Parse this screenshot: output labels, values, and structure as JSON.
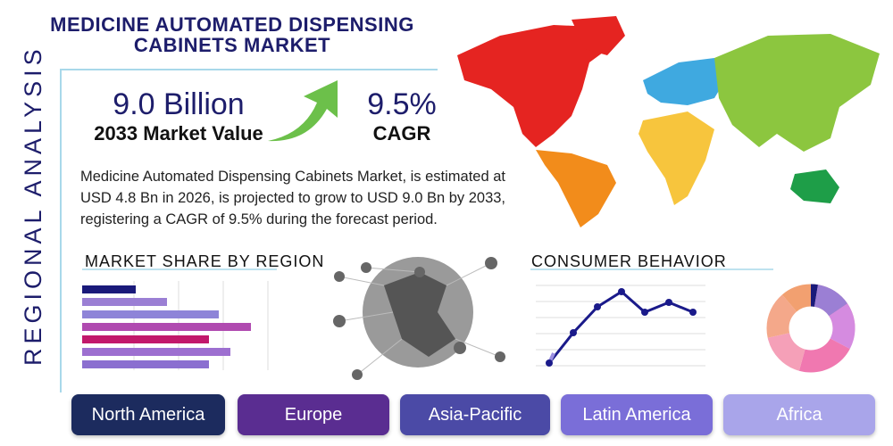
{
  "header": {
    "title": "MEDICINE AUTOMATED DISPENSING CABINETS MARKET",
    "side_label": "REGIONAL ANALYSIS"
  },
  "stats": {
    "market_value": "9.0 Billion",
    "market_value_label": "2033 Market Value",
    "cagr": "9.5%",
    "cagr_label": "CAGR"
  },
  "description": "Medicine Automated Dispensing Cabinets Market, is estimated at USD 4.8 Bn in 2026, is projected to grow to USD 9.0 Bn by 2033, registering a CAGR of 9.5% during the forecast period.",
  "sections": {
    "market_share": "MARKET SHARE BY REGION",
    "consumer_behavior": "CONSUMER BEHAVIOR"
  },
  "regions": [
    "North America",
    "Europe",
    "Asia-Pacific",
    "Latin America",
    "Africa"
  ]
}
